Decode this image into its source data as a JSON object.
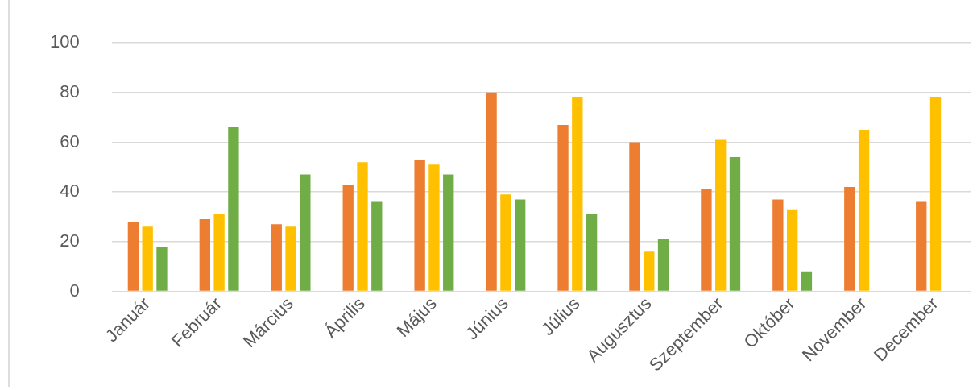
{
  "chart_data": {
    "type": "bar",
    "categories": [
      "Január",
      "Február",
      "Március",
      "Április",
      "Május",
      "Június",
      "Július",
      "Augusztus",
      "Szeptember",
      "Október",
      "November",
      "December"
    ],
    "series": [
      {
        "color": "#ed7d31",
        "values": [
          28,
          29,
          27,
          43,
          53,
          80,
          67,
          60,
          41,
          37,
          42,
          36
        ]
      },
      {
        "color": "#ffc000",
        "values": [
          26,
          31,
          26,
          52,
          51,
          39,
          78,
          16,
          61,
          33,
          65,
          78
        ]
      },
      {
        "color": "#70ad47",
        "values": [
          18,
          66,
          47,
          36,
          47,
          37,
          31,
          21,
          54,
          8,
          null,
          null
        ]
      }
    ],
    "ylim": [
      0,
      100
    ],
    "yticks": [
      0,
      20,
      40,
      60,
      80,
      100
    ],
    "grid": "y",
    "legend": false
  }
}
